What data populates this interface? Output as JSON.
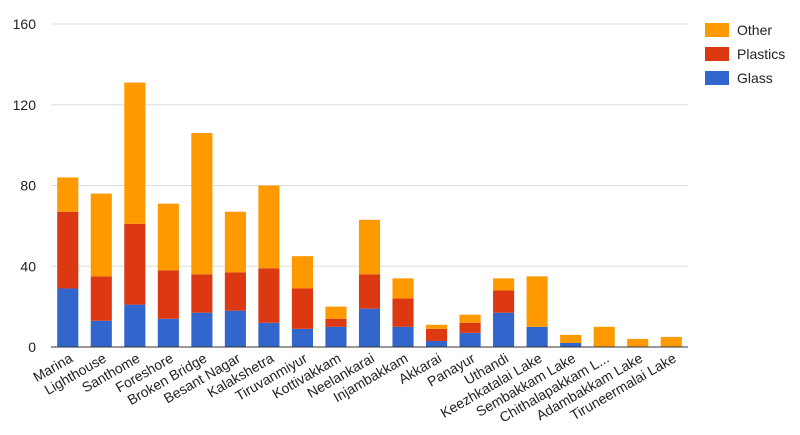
{
  "chart_data": {
    "type": "bar",
    "stacked": true,
    "title": "",
    "xlabel": "",
    "ylabel": "",
    "ylim": [
      0,
      160
    ],
    "yticks": [
      0,
      40,
      80,
      120,
      160
    ],
    "grid": true,
    "legend_position": "top-right",
    "categories": [
      "Marina",
      "Lighthouse",
      "Santhome",
      "Foreshore",
      "Broken Bridge",
      "Besant Nagar",
      "Kalakshetra",
      "Tiruvanmiyur",
      "Kottivakkam",
      "Neelankarai",
      "Injambakkam",
      "Akkarai",
      "Panayur",
      "Uthandi",
      "Keezhkatalai Lake",
      "Sembakkam Lake",
      "Chithalapakkam L...",
      "Adambakkam Lake",
      "Tiruneermalai Lake"
    ],
    "series": [
      {
        "name": "Glass",
        "color": "#3366cc",
        "values": [
          29,
          13,
          21,
          14,
          17,
          18,
          12,
          9,
          10,
          19,
          10,
          3,
          7,
          17,
          10,
          2,
          0,
          0,
          0
        ]
      },
      {
        "name": "Plastics",
        "color": "#dc3912",
        "values": [
          38,
          22,
          40,
          24,
          19,
          19,
          27,
          20,
          4,
          17,
          14,
          6,
          5,
          11,
          0,
          0,
          0,
          0,
          0
        ]
      },
      {
        "name": "Other",
        "color": "#ff9900",
        "values": [
          17,
          41,
          70,
          33,
          70,
          30,
          41,
          16,
          6,
          27,
          10,
          2,
          4,
          6,
          25,
          4,
          10,
          4,
          5
        ]
      }
    ],
    "legend": [
      "Other",
      "Plastics",
      "Glass"
    ]
  }
}
